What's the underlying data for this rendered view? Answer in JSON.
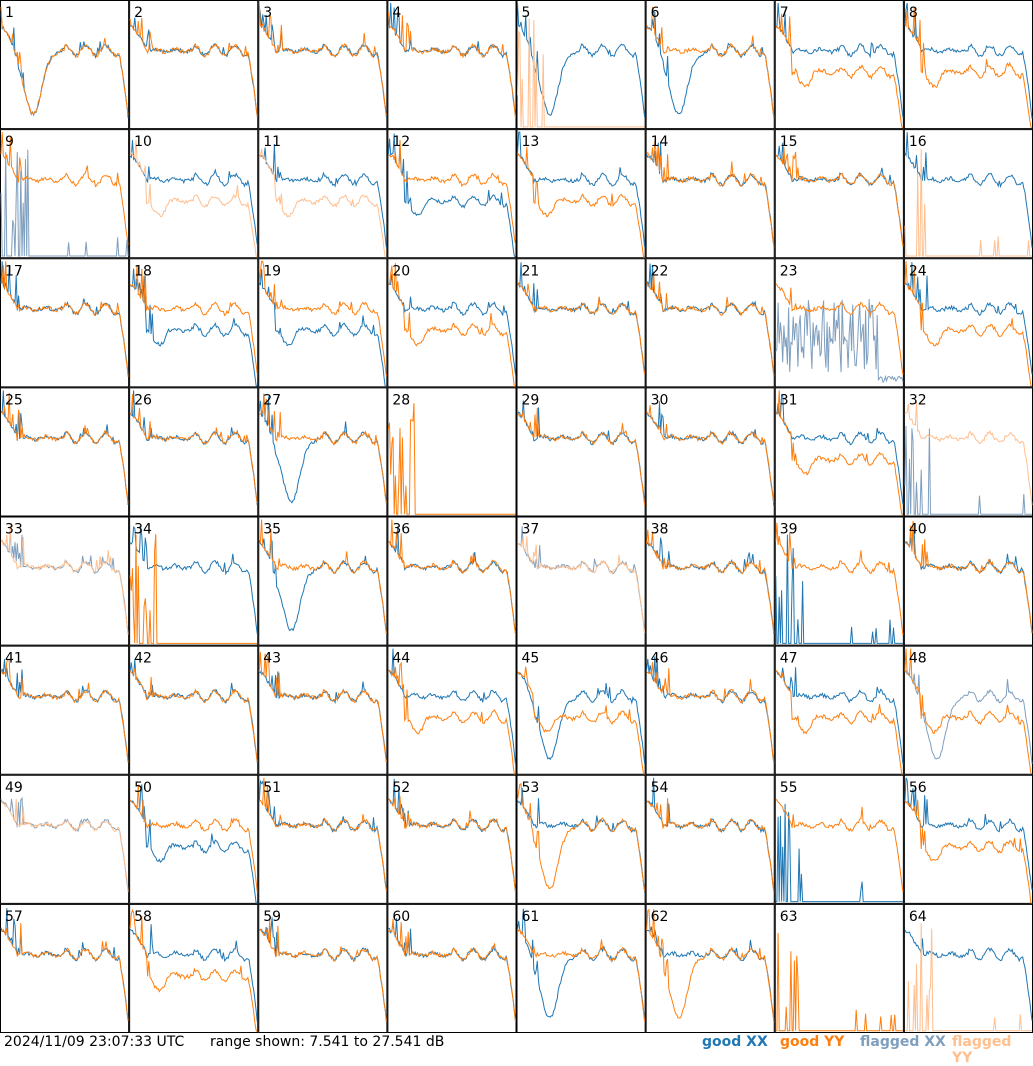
{
  "footer": {
    "timestamp": "2024/11/09 23:07:33 UTC",
    "range_text": "range shown: 7.541 to 27.541 dB",
    "legend": [
      {
        "label": "good XX",
        "color": "#1f77b4"
      },
      {
        "label": "good YY",
        "color": "#ff7f0e"
      },
      {
        "label": "flagged XX",
        "color": "#7f9fbf"
      },
      {
        "label": "flagged YY",
        "color": "#ffbf8f"
      }
    ]
  },
  "chart_data": {
    "type": "line",
    "grid": [
      8,
      8
    ],
    "y_range_db": [
      7.541,
      27.541
    ],
    "colors": {
      "good_xx": "#1f77b4",
      "good_yy": "#ff7f0e",
      "flagged_xx": "#7f9fbf",
      "flagged_yy": "#ffbf8f"
    },
    "panels": [
      {
        "label": "1",
        "xx": "dip",
        "yy": "dip",
        "xx_flag": false,
        "yy_flag": false
      },
      {
        "label": "2",
        "xx": "normal",
        "yy": "normal",
        "xx_flag": false,
        "yy_flag": false
      },
      {
        "label": "3",
        "xx": "normal",
        "yy": "normal",
        "xx_flag": false,
        "yy_flag": false
      },
      {
        "label": "4",
        "xx": "normal",
        "yy": "normal",
        "xx_flag": false,
        "yy_flag": false
      },
      {
        "label": "5",
        "xx": "dip",
        "yy": "dead",
        "xx_flag": false,
        "yy_flag": true
      },
      {
        "label": "6",
        "xx": "dip",
        "yy": "normal",
        "xx_flag": false,
        "yy_flag": false
      },
      {
        "label": "7",
        "xx": "normal",
        "yy": "low",
        "xx_flag": false,
        "yy_flag": false
      },
      {
        "label": "8",
        "xx": "normal",
        "yy": "low",
        "xx_flag": false,
        "yy_flag": false
      },
      {
        "label": "9",
        "xx": "dead",
        "yy": "normal",
        "xx_flag": true,
        "yy_flag": false
      },
      {
        "label": "10",
        "xx": "normal",
        "yy": "low",
        "xx_flag": false,
        "yy_flag": true
      },
      {
        "label": "11",
        "xx": "normal",
        "yy": "low",
        "xx_flag": false,
        "yy_flag": true
      },
      {
        "label": "12",
        "xx": "low",
        "yy": "normal",
        "xx_flag": false,
        "yy_flag": false
      },
      {
        "label": "13",
        "xx": "normal",
        "yy": "low",
        "xx_flag": false,
        "yy_flag": false
      },
      {
        "label": "14",
        "xx": "normal",
        "yy": "normal",
        "xx_flag": false,
        "yy_flag": false
      },
      {
        "label": "15",
        "xx": "normal",
        "yy": "normal",
        "xx_flag": false,
        "yy_flag": false
      },
      {
        "label": "16",
        "xx": "normal",
        "yy": "dead",
        "xx_flag": false,
        "yy_flag": true
      },
      {
        "label": "17",
        "xx": "normal",
        "yy": "normal",
        "xx_flag": false,
        "yy_flag": false
      },
      {
        "label": "18",
        "xx": "low",
        "yy": "normal",
        "xx_flag": false,
        "yy_flag": false
      },
      {
        "label": "19",
        "xx": "low",
        "yy": "normal",
        "xx_flag": false,
        "yy_flag": false
      },
      {
        "label": "20",
        "xx": "normal",
        "yy": "low",
        "xx_flag": false,
        "yy_flag": false
      },
      {
        "label": "21",
        "xx": "normal",
        "yy": "normal",
        "xx_flag": false,
        "yy_flag": false
      },
      {
        "label": "22",
        "xx": "normal",
        "yy": "normal",
        "xx_flag": false,
        "yy_flag": false
      },
      {
        "label": "23",
        "xx": "noise",
        "yy": "normal",
        "xx_flag": true,
        "yy_flag": false
      },
      {
        "label": "24",
        "xx": "normal",
        "yy": "low",
        "xx_flag": false,
        "yy_flag": false
      },
      {
        "label": "25",
        "xx": "normal",
        "yy": "normal",
        "xx_flag": false,
        "yy_flag": false
      },
      {
        "label": "26",
        "xx": "normal",
        "yy": "normal",
        "xx_flag": false,
        "yy_flag": false
      },
      {
        "label": "27",
        "xx": "dip",
        "yy": "normal",
        "xx_flag": false,
        "yy_flag": false
      },
      {
        "label": "28",
        "xx": "none",
        "yy": "dead",
        "xx_flag": false,
        "yy_flag": false
      },
      {
        "label": "29",
        "xx": "normal",
        "yy": "normal",
        "xx_flag": false,
        "yy_flag": false
      },
      {
        "label": "30",
        "xx": "normal",
        "yy": "normal",
        "xx_flag": false,
        "yy_flag": false
      },
      {
        "label": "31",
        "xx": "normal",
        "yy": "low",
        "xx_flag": false,
        "yy_flag": false
      },
      {
        "label": "32",
        "xx": "dead",
        "yy": "normal",
        "xx_flag": true,
        "yy_flag": true
      },
      {
        "label": "33",
        "xx": "normal",
        "yy": "normal",
        "xx_flag": true,
        "yy_flag": true
      },
      {
        "label": "34",
        "xx": "normal",
        "yy": "dead",
        "xx_flag": false,
        "yy_flag": false
      },
      {
        "label": "35",
        "xx": "dip",
        "yy": "normal",
        "xx_flag": false,
        "yy_flag": false
      },
      {
        "label": "36",
        "xx": "normal",
        "yy": "normal",
        "xx_flag": false,
        "yy_flag": false
      },
      {
        "label": "37",
        "xx": "normal",
        "yy": "normal",
        "xx_flag": true,
        "yy_flag": true
      },
      {
        "label": "38",
        "xx": "normal",
        "yy": "normal",
        "xx_flag": false,
        "yy_flag": false
      },
      {
        "label": "39",
        "xx": "dead",
        "yy": "normal",
        "xx_flag": false,
        "yy_flag": false
      },
      {
        "label": "40",
        "xx": "normal",
        "yy": "normal",
        "xx_flag": false,
        "yy_flag": false
      },
      {
        "label": "41",
        "xx": "normal",
        "yy": "normal",
        "xx_flag": false,
        "yy_flag": false
      },
      {
        "label": "42",
        "xx": "normal",
        "yy": "normal",
        "xx_flag": false,
        "yy_flag": false
      },
      {
        "label": "43",
        "xx": "normal",
        "yy": "normal",
        "xx_flag": false,
        "yy_flag": false
      },
      {
        "label": "44",
        "xx": "normal",
        "yy": "low",
        "xx_flag": false,
        "yy_flag": false
      },
      {
        "label": "45",
        "xx": "dip",
        "yy": "low",
        "xx_flag": false,
        "yy_flag": false
      },
      {
        "label": "46",
        "xx": "normal",
        "yy": "normal",
        "xx_flag": false,
        "yy_flag": false
      },
      {
        "label": "47",
        "xx": "normal",
        "yy": "low",
        "xx_flag": false,
        "yy_flag": false
      },
      {
        "label": "48",
        "xx": "dip",
        "yy": "low",
        "xx_flag": true,
        "yy_flag": false
      },
      {
        "label": "49",
        "xx": "normal",
        "yy": "normal",
        "xx_flag": true,
        "yy_flag": true
      },
      {
        "label": "50",
        "xx": "low",
        "yy": "normal",
        "xx_flag": false,
        "yy_flag": false
      },
      {
        "label": "51",
        "xx": "normal",
        "yy": "normal",
        "xx_flag": false,
        "yy_flag": false
      },
      {
        "label": "52",
        "xx": "normal",
        "yy": "normal",
        "xx_flag": false,
        "yy_flag": false
      },
      {
        "label": "53",
        "xx": "normal",
        "yy": "dip",
        "xx_flag": false,
        "yy_flag": false
      },
      {
        "label": "54",
        "xx": "normal",
        "yy": "normal",
        "xx_flag": false,
        "yy_flag": false
      },
      {
        "label": "55",
        "xx": "dead",
        "yy": "normal",
        "xx_flag": false,
        "yy_flag": false
      },
      {
        "label": "56",
        "xx": "normal",
        "yy": "low",
        "xx_flag": false,
        "yy_flag": false
      },
      {
        "label": "57",
        "xx": "normal",
        "yy": "normal",
        "xx_flag": false,
        "yy_flag": false
      },
      {
        "label": "58",
        "xx": "normal",
        "yy": "low",
        "xx_flag": false,
        "yy_flag": false
      },
      {
        "label": "59",
        "xx": "normal",
        "yy": "normal",
        "xx_flag": false,
        "yy_flag": false
      },
      {
        "label": "60",
        "xx": "normal",
        "yy": "normal",
        "xx_flag": false,
        "yy_flag": false
      },
      {
        "label": "61",
        "xx": "dip",
        "yy": "normal",
        "xx_flag": false,
        "yy_flag": false
      },
      {
        "label": "62",
        "xx": "normal",
        "yy": "dip",
        "xx_flag": false,
        "yy_flag": false
      },
      {
        "label": "63",
        "xx": "none",
        "yy": "dead",
        "xx_flag": false,
        "yy_flag": false
      },
      {
        "label": "64",
        "xx": "normal",
        "yy": "dead",
        "xx_flag": false,
        "yy_flag": true
      }
    ]
  }
}
